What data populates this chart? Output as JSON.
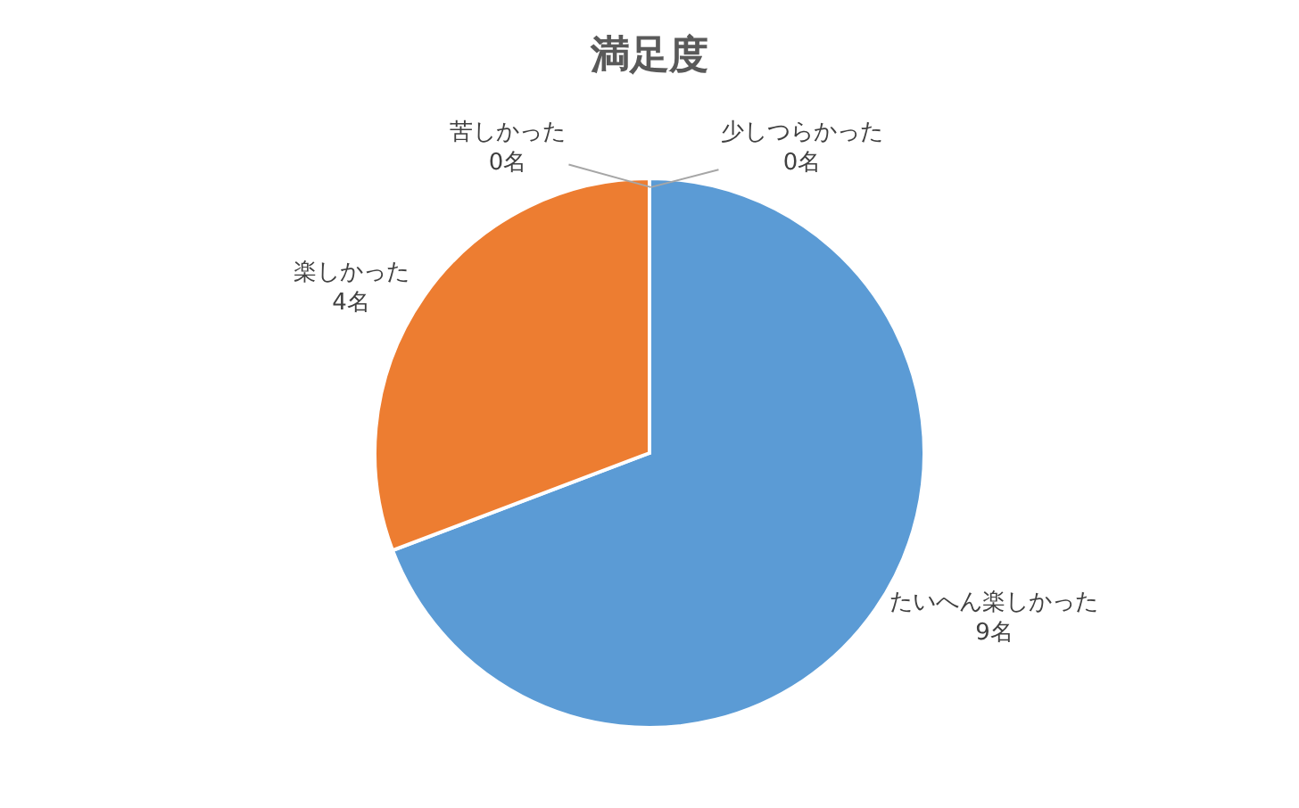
{
  "chart_data": {
    "type": "pie",
    "title": "満足度",
    "categories": [
      "たいへん楽しかった",
      "楽しかった",
      "苦しかった",
      "少しつらかった"
    ],
    "values": [
      9,
      4,
      0,
      0
    ],
    "value_labels": [
      "9名",
      "4名",
      "0名",
      "0名"
    ],
    "colors": [
      "#5b9bd5",
      "#ed7d31",
      "#a5a5a5",
      "#ffc000"
    ],
    "legend": false
  }
}
